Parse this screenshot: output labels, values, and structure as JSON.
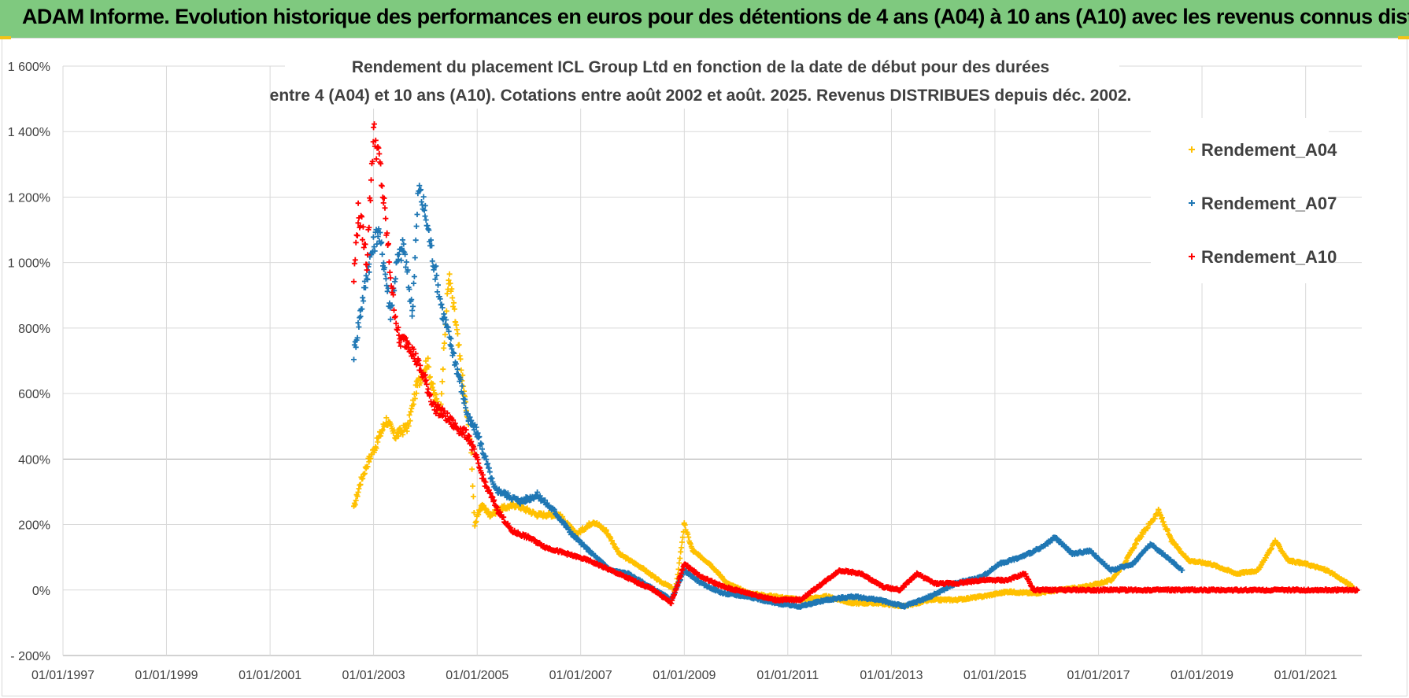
{
  "header": {
    "title": "ADAM Informe. Evolution historique des performances en euros pour des détentions de 4 ans (A04) à 10 ans (A10) avec les revenus connus distribués"
  },
  "chart_data": {
    "type": "scatter",
    "title_line1": "Rendement du placement ICL Group Ltd en fonction de la date de début pour des durées",
    "title_line2": "entre 4 (A04) et 10 ans (A10). Cotations entre août 2002 et août. 2025. Revenus DISTRIBUES depuis déc. 2002.",
    "xlabel": "",
    "ylabel": "",
    "x_ticks": [
      "01/01/1997",
      "01/01/1999",
      "01/01/2001",
      "01/01/2003",
      "01/01/2005",
      "01/01/2007",
      "01/01/2009",
      "01/01/2011",
      "01/01/2013",
      "01/01/2015",
      "01/01/2017",
      "01/01/2019",
      "01/01/2021"
    ],
    "xlim": [
      "1997-01-01",
      "2022-02-01"
    ],
    "y_ticks": [
      "- 200%",
      "0%",
      "200%",
      "400%",
      "600%",
      "800%",
      "1 000%",
      "1 200%",
      "1 400%",
      "1 600%"
    ],
    "ylim": [
      -200,
      1600
    ],
    "y_unit": "%",
    "grid": true,
    "legend_position": "right",
    "marker": "+",
    "series": [
      {
        "name": "Rendement_A04",
        "color": "#ffc000",
        "points": [
          [
            "2002-08-15",
            250
          ],
          [
            "2002-10-01",
            330
          ],
          [
            "2002-12-01",
            400
          ],
          [
            "2003-01-15",
            440
          ],
          [
            "2003-04-01",
            520
          ],
          [
            "2003-06-01",
            470
          ],
          [
            "2003-09-01",
            500
          ],
          [
            "2003-11-01",
            620
          ],
          [
            "2004-01-15",
            700
          ],
          [
            "2004-03-01",
            600
          ],
          [
            "2004-04-15",
            550
          ],
          [
            "2004-06-15",
            960
          ],
          [
            "2004-08-01",
            820
          ],
          [
            "2004-10-01",
            600
          ],
          [
            "2004-11-15",
            450
          ],
          [
            "2004-12-15",
            200
          ],
          [
            "2005-02-01",
            260
          ],
          [
            "2005-04-01",
            230
          ],
          [
            "2005-07-01",
            250
          ],
          [
            "2005-10-01",
            260
          ],
          [
            "2006-03-01",
            230
          ],
          [
            "2006-08-01",
            230
          ],
          [
            "2006-12-01",
            170
          ],
          [
            "2007-04-01",
            210
          ],
          [
            "2007-07-01",
            180
          ],
          [
            "2007-10-01",
            110
          ],
          [
            "2008-03-01",
            70
          ],
          [
            "2008-07-01",
            30
          ],
          [
            "2008-11-01",
            0
          ],
          [
            "2009-01-01",
            200
          ],
          [
            "2009-03-01",
            120
          ],
          [
            "2009-07-01",
            80
          ],
          [
            "2009-11-01",
            20
          ],
          [
            "2010-04-01",
            -10
          ],
          [
            "2010-10-01",
            -20
          ],
          [
            "2011-04-01",
            -30
          ],
          [
            "2011-10-01",
            -20
          ],
          [
            "2012-04-01",
            -40
          ],
          [
            "2012-10-01",
            -40
          ],
          [
            "2013-04-01",
            -50
          ],
          [
            "2013-10-01",
            -30
          ],
          [
            "2014-04-01",
            -30
          ],
          [
            "2014-10-01",
            -20
          ],
          [
            "2015-04-01",
            -5
          ],
          [
            "2015-10-01",
            -10
          ],
          [
            "2016-04-01",
            0
          ],
          [
            "2016-10-01",
            10
          ],
          [
            "2017-04-01",
            30
          ],
          [
            "2017-07-01",
            80
          ],
          [
            "2017-10-01",
            150
          ],
          [
            "2018-03-01",
            240
          ],
          [
            "2018-06-01",
            150
          ],
          [
            "2018-10-01",
            90
          ],
          [
            "2019-03-01",
            80
          ],
          [
            "2019-09-01",
            50
          ],
          [
            "2020-02-01",
            60
          ],
          [
            "2020-06-01",
            150
          ],
          [
            "2020-09-01",
            90
          ],
          [
            "2021-01-01",
            80
          ],
          [
            "2021-06-01",
            60
          ],
          [
            "2021-12-01",
            10
          ]
        ]
      },
      {
        "name": "Rendement_A07",
        "color": "#1f77b4",
        "points": [
          [
            "2002-08-15",
            720
          ],
          [
            "2002-10-01",
            850
          ],
          [
            "2002-12-01",
            1000
          ],
          [
            "2003-02-01",
            1100
          ],
          [
            "2003-03-15",
            1000
          ],
          [
            "2003-05-01",
            850
          ],
          [
            "2003-06-15",
            1000
          ],
          [
            "2003-08-01",
            1050
          ],
          [
            "2003-10-01",
            850
          ],
          [
            "2003-11-15",
            1230
          ],
          [
            "2004-01-01",
            1150
          ],
          [
            "2004-03-01",
            1000
          ],
          [
            "2004-05-01",
            850
          ],
          [
            "2004-07-01",
            750
          ],
          [
            "2004-09-01",
            640
          ],
          [
            "2004-11-01",
            520
          ],
          [
            "2005-01-01",
            480
          ],
          [
            "2005-03-01",
            400
          ],
          [
            "2005-05-01",
            310
          ],
          [
            "2005-08-01",
            290
          ],
          [
            "2005-11-01",
            270
          ],
          [
            "2006-03-01",
            290
          ],
          [
            "2006-07-01",
            240
          ],
          [
            "2006-11-01",
            170
          ],
          [
            "2007-03-01",
            120
          ],
          [
            "2007-08-01",
            60
          ],
          [
            "2007-12-01",
            50
          ],
          [
            "2008-05-01",
            10
          ],
          [
            "2008-10-01",
            -30
          ],
          [
            "2009-01-01",
            60
          ],
          [
            "2009-05-01",
            20
          ],
          [
            "2009-10-01",
            -10
          ],
          [
            "2010-04-01",
            -20
          ],
          [
            "2010-10-01",
            -40
          ],
          [
            "2011-04-01",
            -50
          ],
          [
            "2011-10-01",
            -30
          ],
          [
            "2012-04-01",
            -20
          ],
          [
            "2012-10-01",
            -30
          ],
          [
            "2013-04-01",
            -50
          ],
          [
            "2013-10-01",
            -20
          ],
          [
            "2014-04-01",
            20
          ],
          [
            "2014-10-01",
            40
          ],
          [
            "2015-02-01",
            80
          ],
          [
            "2015-07-01",
            100
          ],
          [
            "2015-12-01",
            130
          ],
          [
            "2016-03-01",
            160
          ],
          [
            "2016-07-01",
            110
          ],
          [
            "2016-11-01",
            120
          ],
          [
            "2017-04-01",
            60
          ],
          [
            "2017-09-01",
            80
          ],
          [
            "2018-01-01",
            140
          ],
          [
            "2018-05-01",
            100
          ],
          [
            "2018-08-15",
            60
          ]
        ]
      },
      {
        "name": "Rendement_A10",
        "color": "#ff0000",
        "points": [
          [
            "2002-08-15",
            950
          ],
          [
            "2002-09-15",
            1150
          ],
          [
            "2002-10-15",
            1100
          ],
          [
            "2002-11-15",
            1000
          ],
          [
            "2003-01-01",
            1400
          ],
          [
            "2003-02-15",
            1300
          ],
          [
            "2003-04-01",
            1100
          ],
          [
            "2003-05-15",
            900
          ],
          [
            "2003-07-01",
            760
          ],
          [
            "2003-09-01",
            760
          ],
          [
            "2003-11-01",
            700
          ],
          [
            "2004-01-01",
            640
          ],
          [
            "2004-03-01",
            560
          ],
          [
            "2004-05-01",
            540
          ],
          [
            "2004-08-01",
            500
          ],
          [
            "2004-11-01",
            470
          ],
          [
            "2005-03-01",
            320
          ],
          [
            "2005-06-01",
            240
          ],
          [
            "2005-09-01",
            180
          ],
          [
            "2006-01-01",
            160
          ],
          [
            "2006-05-01",
            130
          ],
          [
            "2006-10-01",
            110
          ],
          [
            "2007-03-01",
            90
          ],
          [
            "2007-08-01",
            60
          ],
          [
            "2008-01-01",
            30
          ],
          [
            "2008-06-01",
            0
          ],
          [
            "2008-10-01",
            -40
          ],
          [
            "2009-01-01",
            80
          ],
          [
            "2009-05-01",
            40
          ],
          [
            "2009-10-01",
            10
          ],
          [
            "2010-04-01",
            -10
          ],
          [
            "2010-10-01",
            -30
          ],
          [
            "2011-04-01",
            -30
          ],
          [
            "2011-09-01",
            20
          ],
          [
            "2012-01-01",
            60
          ],
          [
            "2012-06-01",
            50
          ],
          [
            "2012-11-01",
            10
          ],
          [
            "2013-03-01",
            0
          ],
          [
            "2013-07-01",
            50
          ],
          [
            "2013-11-01",
            20
          ],
          [
            "2014-04-01",
            20
          ],
          [
            "2014-10-01",
            30
          ],
          [
            "2015-04-01",
            30
          ],
          [
            "2015-08-01",
            50
          ],
          [
            "2015-10-01",
            0
          ],
          [
            "2018-01-01",
            0
          ],
          [
            "2020-01-01",
            0
          ],
          [
            "2022-01-01",
            0
          ]
        ]
      }
    ]
  }
}
